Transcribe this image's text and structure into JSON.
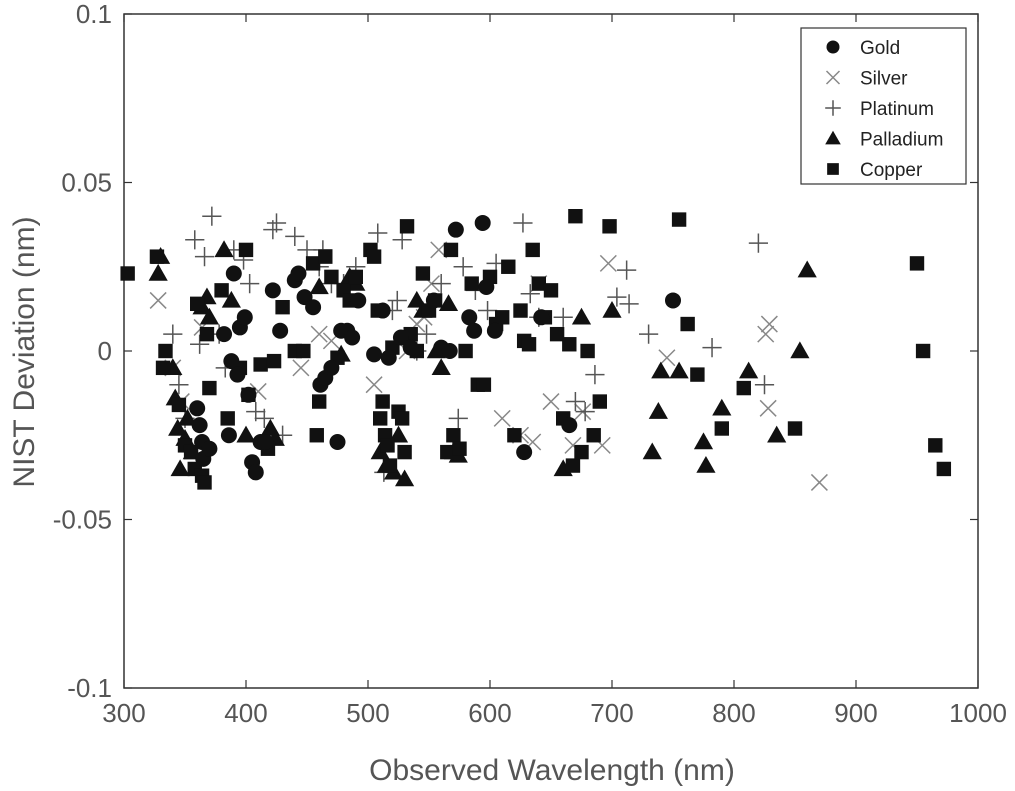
{
  "chart_data": {
    "type": "scatter",
    "xlabel": "Observed Wavelength (nm)",
    "ylabel": "NIST Deviation (nm)",
    "xlim": [
      300,
      1000
    ],
    "ylim": [
      -0.1,
      0.1
    ],
    "xticks": [
      300,
      400,
      500,
      600,
      700,
      800,
      900,
      1000
    ],
    "yticks": [
      -0.1,
      -0.05,
      0,
      0.05,
      0.1
    ],
    "ytick_labels": [
      "-0.1",
      "-0.05",
      "0",
      "0.05",
      "0.1"
    ],
    "grid": false,
    "legend_position": "top-right",
    "series": [
      {
        "name": "Gold",
        "marker": "circle",
        "color": "#111111",
        "points": [
          [
            360,
            -0.017
          ],
          [
            362,
            -0.022
          ],
          [
            364,
            -0.027
          ],
          [
            365,
            -0.032
          ],
          [
            370,
            -0.029
          ],
          [
            382,
            0.005
          ],
          [
            386,
            -0.025
          ],
          [
            388,
            -0.003
          ],
          [
            390,
            0.023
          ],
          [
            393,
            -0.007
          ],
          [
            395,
            0.007
          ],
          [
            399,
            0.01
          ],
          [
            402,
            -0.013
          ],
          [
            405,
            -0.033
          ],
          [
            408,
            -0.036
          ],
          [
            412,
            -0.027
          ],
          [
            416,
            -0.027
          ],
          [
            422,
            0.018
          ],
          [
            428,
            0.006
          ],
          [
            440,
            0.021
          ],
          [
            443,
            0.023
          ],
          [
            448,
            0.016
          ],
          [
            455,
            0.013
          ],
          [
            461,
            -0.01
          ],
          [
            465,
            -0.008
          ],
          [
            470,
            -0.005
          ],
          [
            475,
            -0.027
          ],
          [
            478,
            0.006
          ],
          [
            483,
            0.006
          ],
          [
            487,
            0.004
          ],
          [
            492,
            0.015
          ],
          [
            505,
            -0.001
          ],
          [
            512,
            0.012
          ],
          [
            517,
            -0.002
          ],
          [
            527,
            0.004
          ],
          [
            535,
            0.001
          ],
          [
            554,
            0.015
          ],
          [
            560,
            0.001
          ],
          [
            567,
            0.0
          ],
          [
            572,
            0.036
          ],
          [
            583,
            0.01
          ],
          [
            587,
            0.006
          ],
          [
            594,
            0.038
          ],
          [
            597,
            0.019
          ],
          [
            604,
            0.006
          ],
          [
            628,
            -0.03
          ],
          [
            642,
            0.01
          ],
          [
            665,
            -0.022
          ],
          [
            750,
            0.015
          ]
        ]
      },
      {
        "name": "Silver",
        "marker": "x",
        "color": "#888888",
        "points": [
          [
            328,
            0.015
          ],
          [
            340,
            -0.005
          ],
          [
            347,
            -0.015
          ],
          [
            364,
            0.007
          ],
          [
            410,
            -0.012
          ],
          [
            445,
            -0.005
          ],
          [
            460,
            0.005
          ],
          [
            470,
            0.003
          ],
          [
            505,
            -0.01
          ],
          [
            532,
            0.0
          ],
          [
            540,
            0.008
          ],
          [
            546,
            0.01
          ],
          [
            552,
            0.02
          ],
          [
            558,
            0.03
          ],
          [
            610,
            -0.02
          ],
          [
            625,
            -0.025
          ],
          [
            635,
            -0.027
          ],
          [
            640,
            0.02
          ],
          [
            650,
            -0.015
          ],
          [
            668,
            -0.028
          ],
          [
            676,
            -0.018
          ],
          [
            692,
            -0.028
          ],
          [
            697,
            0.026
          ],
          [
            745,
            -0.002
          ],
          [
            826,
            0.005
          ],
          [
            829,
            0.008
          ],
          [
            828,
            -0.017
          ],
          [
            870,
            -0.039
          ]
        ]
      },
      {
        "name": "Platinum",
        "marker": "plus",
        "color": "#555555",
        "points": [
          [
            340,
            0.005
          ],
          [
            345,
            -0.01
          ],
          [
            350,
            -0.02
          ],
          [
            358,
            0.033
          ],
          [
            362,
            0.002
          ],
          [
            366,
            0.028
          ],
          [
            372,
            0.04
          ],
          [
            378,
            0.005
          ],
          [
            383,
            -0.005
          ],
          [
            390,
            0.03
          ],
          [
            398,
            0.027
          ],
          [
            403,
            0.02
          ],
          [
            408,
            -0.018
          ],
          [
            415,
            -0.02
          ],
          [
            422,
            0.036
          ],
          [
            425,
            0.038
          ],
          [
            430,
            -0.025
          ],
          [
            440,
            0.034
          ],
          [
            450,
            0.03
          ],
          [
            460,
            0.025
          ],
          [
            463,
            0.03
          ],
          [
            470,
            0.02
          ],
          [
            480,
            0.02
          ],
          [
            490,
            0.025
          ],
          [
            508,
            0.035
          ],
          [
            513,
            -0.036
          ],
          [
            520,
            0.012
          ],
          [
            524,
            0.015
          ],
          [
            528,
            0.033
          ],
          [
            540,
            0.0
          ],
          [
            548,
            0.005
          ],
          [
            560,
            0.02
          ],
          [
            574,
            -0.02
          ],
          [
            578,
            0.025
          ],
          [
            588,
            0.018
          ],
          [
            598,
            0.012
          ],
          [
            605,
            0.026
          ],
          [
            627,
            0.038
          ],
          [
            633,
            0.017
          ],
          [
            640,
            0.01
          ],
          [
            660,
            0.01
          ],
          [
            670,
            -0.015
          ],
          [
            678,
            -0.018
          ],
          [
            686,
            -0.007
          ],
          [
            704,
            0.016
          ],
          [
            712,
            0.024
          ],
          [
            714,
            0.014
          ],
          [
            730,
            0.005
          ],
          [
            782,
            0.001
          ],
          [
            820,
            0.032
          ],
          [
            825,
            -0.01
          ]
        ]
      },
      {
        "name": "Palladium",
        "marker": "triangle",
        "color": "#111111",
        "points": [
          [
            328,
            0.023
          ],
          [
            330,
            0.028
          ],
          [
            340,
            -0.005
          ],
          [
            342,
            -0.014
          ],
          [
            344,
            -0.023
          ],
          [
            346,
            -0.035
          ],
          [
            350,
            -0.026
          ],
          [
            352,
            -0.02
          ],
          [
            356,
            -0.03
          ],
          [
            364,
            0.013
          ],
          [
            368,
            0.016
          ],
          [
            370,
            0.01
          ],
          [
            382,
            0.03
          ],
          [
            388,
            0.015
          ],
          [
            400,
            -0.025
          ],
          [
            420,
            -0.023
          ],
          [
            424,
            -0.026
          ],
          [
            460,
            0.019
          ],
          [
            478,
            -0.001
          ],
          [
            485,
            0.022
          ],
          [
            490,
            0.02
          ],
          [
            510,
            -0.03
          ],
          [
            515,
            -0.034
          ],
          [
            521,
            -0.036
          ],
          [
            525,
            -0.025
          ],
          [
            530,
            -0.038
          ],
          [
            540,
            0.015
          ],
          [
            545,
            0.012
          ],
          [
            556,
            0.0
          ],
          [
            560,
            -0.005
          ],
          [
            566,
            0.014
          ],
          [
            570,
            -0.03
          ],
          [
            574,
            -0.031
          ],
          [
            660,
            -0.035
          ],
          [
            675,
            0.01
          ],
          [
            700,
            0.012
          ],
          [
            733,
            -0.03
          ],
          [
            738,
            -0.018
          ],
          [
            740,
            -0.006
          ],
          [
            755,
            -0.006
          ],
          [
            775,
            -0.027
          ],
          [
            777,
            -0.034
          ],
          [
            790,
            -0.017
          ],
          [
            812,
            -0.006
          ],
          [
            835,
            -0.025
          ],
          [
            854,
            0.0
          ],
          [
            860,
            0.024
          ]
        ]
      },
      {
        "name": "Copper",
        "marker": "square",
        "color": "#111111",
        "points": [
          [
            303,
            0.023
          ],
          [
            327,
            0.028
          ],
          [
            332,
            -0.005
          ],
          [
            334,
            0.0
          ],
          [
            345,
            -0.016
          ],
          [
            350,
            -0.028
          ],
          [
            355,
            -0.03
          ],
          [
            358,
            -0.035
          ],
          [
            360,
            0.014
          ],
          [
            364,
            -0.037
          ],
          [
            366,
            -0.039
          ],
          [
            368,
            0.005
          ],
          [
            370,
            -0.011
          ],
          [
            380,
            0.018
          ],
          [
            385,
            -0.02
          ],
          [
            395,
            -0.005
          ],
          [
            400,
            0.03
          ],
          [
            402,
            -0.013
          ],
          [
            412,
            -0.004
          ],
          [
            418,
            -0.029
          ],
          [
            423,
            -0.003
          ],
          [
            430,
            0.013
          ],
          [
            440,
            0.0
          ],
          [
            447,
            0.0
          ],
          [
            455,
            0.026
          ],
          [
            458,
            -0.025
          ],
          [
            460,
            -0.015
          ],
          [
            465,
            0.028
          ],
          [
            470,
            0.022
          ],
          [
            475,
            -0.002
          ],
          [
            480,
            0.018
          ],
          [
            485,
            0.015
          ],
          [
            490,
            0.022
          ],
          [
            502,
            0.03
          ],
          [
            505,
            0.028
          ],
          [
            508,
            0.012
          ],
          [
            510,
            -0.02
          ],
          [
            512,
            -0.015
          ],
          [
            514,
            -0.025
          ],
          [
            516,
            -0.028
          ],
          [
            518,
            -0.034
          ],
          [
            520,
            0.001
          ],
          [
            525,
            -0.018
          ],
          [
            528,
            -0.02
          ],
          [
            530,
            -0.03
          ],
          [
            532,
            0.037
          ],
          [
            535,
            0.005
          ],
          [
            540,
            0.0
          ],
          [
            545,
            0.023
          ],
          [
            550,
            0.012
          ],
          [
            555,
            0.015
          ],
          [
            565,
            -0.03
          ],
          [
            568,
            0.03
          ],
          [
            570,
            -0.025
          ],
          [
            575,
            -0.029
          ],
          [
            580,
            0.0
          ],
          [
            585,
            0.02
          ],
          [
            590,
            -0.01
          ],
          [
            595,
            -0.01
          ],
          [
            600,
            0.022
          ],
          [
            605,
            0.008
          ],
          [
            610,
            0.01
          ],
          [
            615,
            0.025
          ],
          [
            620,
            -0.025
          ],
          [
            625,
            0.012
          ],
          [
            628,
            0.003
          ],
          [
            632,
            0.002
          ],
          [
            635,
            0.03
          ],
          [
            640,
            0.02
          ],
          [
            645,
            0.01
          ],
          [
            650,
            0.018
          ],
          [
            655,
            0.005
          ],
          [
            660,
            -0.02
          ],
          [
            665,
            0.002
          ],
          [
            668,
            -0.034
          ],
          [
            670,
            0.04
          ],
          [
            675,
            -0.03
          ],
          [
            680,
            0.0
          ],
          [
            685,
            -0.025
          ],
          [
            690,
            -0.015
          ],
          [
            698,
            0.037
          ],
          [
            755,
            0.039
          ],
          [
            762,
            0.008
          ],
          [
            770,
            -0.007
          ],
          [
            790,
            -0.023
          ],
          [
            808,
            -0.011
          ],
          [
            850,
            -0.023
          ],
          [
            950,
            0.026
          ],
          [
            955,
            0.0
          ],
          [
            965,
            -0.028
          ],
          [
            972,
            -0.035
          ]
        ]
      }
    ]
  }
}
